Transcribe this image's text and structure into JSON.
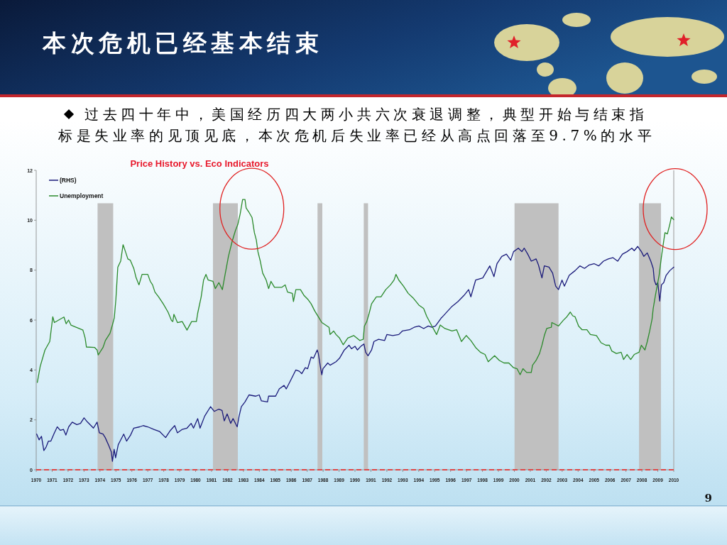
{
  "chart_data": {
    "type": "line",
    "title": "本次危机已经基本结束",
    "subtitle": "过去四十年中，美国经历四大两小共六次衰退调整，典型开始与结束指标是失业率的见顶见底，本次危机后失业率已经从高点回落至9.7%的水平",
    "annotations": [
      "Price History vs. Eco Indicators",
      "9"
    ],
    "xlim": [
      1970,
      2010
    ],
    "xticks": [
      1970,
      1971,
      1972,
      1973,
      1974,
      1975,
      1976,
      1977,
      1978,
      1979,
      1980,
      1981,
      1982,
      1983,
      1984,
      1985,
      1986,
      1987,
      1988,
      1989,
      1990,
      1991,
      1992,
      1993,
      1994,
      1995,
      1996,
      1997,
      1998,
      1999,
      2000,
      2001,
      2002,
      2003,
      2004,
      2005,
      2006,
      2007,
      2008,
      2009,
      2010
    ],
    "ylim": [
      0,
      12
    ],
    "yticks": [
      0,
      2,
      4,
      6,
      8,
      10,
      12
    ],
    "legend": "top left",
    "series": [
      {
        "name": "(RHS)",
        "color": "#1a1a7a",
        "x": [
          1970.03,
          1970.18,
          1970.33,
          1970.48,
          1970.62,
          1970.77,
          1970.92,
          1971.14,
          1971.32,
          1971.51,
          1971.71,
          1971.86,
          1972.04,
          1972.26,
          1972.55,
          1972.78,
          1973.0,
          1973.22,
          1973.44,
          1973.59,
          1973.82,
          1973.96,
          1974.19,
          1974.33,
          1974.56,
          1974.71,
          1974.78,
          1974.89,
          1974.98,
          1975.15,
          1975.49,
          1975.67,
          1975.92,
          1976.12,
          1976.49,
          1976.71,
          1977.0,
          1977.38,
          1977.75,
          1978.12,
          1978.42,
          1978.69,
          1978.86,
          1979.16,
          1979.46,
          1979.72,
          1979.87,
          1980.13,
          1980.28,
          1980.57,
          1980.94,
          1981.17,
          1981.46,
          1981.66,
          1981.8,
          1981.98,
          1982.2,
          1982.35,
          1982.61,
          1982.73,
          1982.87,
          1983.1,
          1983.35,
          1983.76,
          1983.99,
          1984.13,
          1984.51,
          1984.58,
          1985.02,
          1985.25,
          1985.55,
          1985.69,
          1985.99,
          1986.29,
          1986.51,
          1986.66,
          1986.88,
          1987.03,
          1987.25,
          1987.4,
          1987.63,
          1987.7,
          1987.85,
          1987.92,
          1987.99,
          1988.29,
          1988.44,
          1988.81,
          1989.03,
          1989.33,
          1989.63,
          1989.78,
          1990.0,
          1990.15,
          1990.37,
          1990.56,
          1990.67,
          1990.82,
          1991.04,
          1991.19,
          1991.48,
          1991.86,
          1992.0,
          1992.37,
          1992.75,
          1992.97,
          1993.42,
          1993.71,
          1994.01,
          1994.31,
          1994.6,
          1994.82,
          1995.05,
          1995.42,
          1995.49,
          1996.09,
          1996.46,
          1996.83,
          1997.13,
          1997.27,
          1997.57,
          1998.02,
          1998.46,
          1998.72,
          1998.91,
          1999.21,
          1999.5,
          1999.77,
          1999.95,
          2000.25,
          2000.47,
          2000.62,
          2000.84,
          2001.06,
          2001.36,
          2001.51,
          2001.73,
          2001.88,
          2002.17,
          2002.4,
          2002.59,
          2002.77,
          2002.99,
          2003.14,
          2003.44,
          2003.81,
          2004.11,
          2004.4,
          2004.7,
          2005.0,
          2005.29,
          2005.59,
          2005.89,
          2006.18,
          2006.48,
          2006.78,
          2007.07,
          2007.37,
          2007.52,
          2007.74,
          2007.97,
          2008.12,
          2008.34,
          2008.56,
          2008.71,
          2008.78,
          2008.89,
          2009.0,
          2009.12,
          2009.23,
          2009.37,
          2009.52,
          2009.75,
          2010.0
        ],
        "values": [
          1.43,
          1.2,
          1.34,
          0.77,
          0.91,
          1.15,
          1.15,
          1.48,
          1.72,
          1.58,
          1.62,
          1.39,
          1.72,
          1.91,
          1.81,
          1.86,
          2.08,
          1.91,
          1.77,
          1.67,
          1.91,
          1.48,
          1.43,
          1.29,
          0.96,
          0.72,
          0.34,
          0.82,
          0.48,
          1.01,
          1.43,
          1.15,
          1.39,
          1.67,
          1.72,
          1.77,
          1.72,
          1.62,
          1.53,
          1.29,
          1.58,
          1.77,
          1.48,
          1.62,
          1.67,
          1.86,
          1.67,
          2.05,
          1.67,
          2.15,
          2.53,
          2.34,
          2.43,
          2.38,
          1.96,
          2.24,
          1.86,
          2.05,
          1.72,
          2.15,
          2.53,
          2.72,
          3.0,
          2.95,
          3.0,
          2.76,
          2.72,
          2.95,
          2.95,
          3.24,
          3.38,
          3.24,
          3.62,
          4.0,
          3.95,
          3.85,
          4.09,
          4.05,
          4.52,
          4.47,
          4.8,
          4.66,
          4.05,
          3.81,
          4.05,
          4.28,
          4.19,
          4.33,
          4.47,
          4.8,
          4.99,
          4.85,
          4.95,
          4.8,
          4.95,
          5.04,
          4.71,
          4.57,
          4.8,
          5.14,
          5.23,
          5.18,
          5.42,
          5.38,
          5.42,
          5.56,
          5.61,
          5.71,
          5.76,
          5.66,
          5.76,
          5.71,
          5.76,
          6.09,
          6.13,
          6.55,
          6.74,
          6.98,
          7.22,
          6.93,
          7.6,
          7.69,
          8.17,
          7.74,
          8.26,
          8.55,
          8.64,
          8.4,
          8.74,
          8.88,
          8.74,
          8.88,
          8.64,
          8.36,
          8.45,
          8.21,
          7.69,
          8.17,
          8.12,
          7.88,
          7.36,
          7.22,
          7.6,
          7.36,
          7.79,
          7.98,
          8.17,
          8.07,
          8.21,
          8.26,
          8.17,
          8.36,
          8.45,
          8.5,
          8.36,
          8.64,
          8.74,
          8.88,
          8.78,
          8.95,
          8.74,
          8.55,
          8.69,
          8.36,
          8.07,
          7.6,
          7.41,
          7.5,
          6.76,
          7.41,
          7.5,
          7.79,
          7.98,
          8.12
        ]
      },
      {
        "name": "Unemployment",
        "color": "#2b8a2b",
        "x": [
          1970.07,
          1970.25,
          1970.55,
          1970.85,
          1971.04,
          1971.14,
          1971.74,
          1971.88,
          1972.03,
          1972.18,
          1972.93,
          1973.07,
          1973.15,
          1973.67,
          1973.82,
          1973.89,
          1974.19,
          1974.34,
          1974.63,
          1974.78,
          1974.9,
          1975.0,
          1975.12,
          1975.3,
          1975.45,
          1975.6,
          1975.75,
          1975.9,
          1976.12,
          1976.27,
          1976.45,
          1976.64,
          1977.0,
          1977.16,
          1977.3,
          1977.45,
          1977.68,
          1977.97,
          1978.27,
          1978.49,
          1978.57,
          1978.64,
          1978.86,
          1979.16,
          1979.46,
          1979.75,
          1980.05,
          1980.13,
          1980.35,
          1980.5,
          1980.65,
          1980.79,
          1981.09,
          1981.24,
          1981.46,
          1981.68,
          1981.84,
          1982.06,
          1982.28,
          1982.5,
          1982.65,
          1982.8,
          1982.95,
          1983.1,
          1983.17,
          1983.32,
          1983.54,
          1983.69,
          1983.81,
          1983.91,
          1984.06,
          1984.21,
          1984.43,
          1984.58,
          1984.73,
          1984.95,
          1985.4,
          1985.62,
          1985.77,
          1986.07,
          1986.14,
          1986.29,
          1986.58,
          1986.81,
          1987.03,
          1987.25,
          1987.48,
          1987.7,
          1987.92,
          1988.37,
          1988.44,
          1988.66,
          1988.81,
          1989.03,
          1989.26,
          1989.55,
          1989.92,
          1990.3,
          1990.52,
          1990.59,
          1990.74,
          1990.89,
          1991.04,
          1991.34,
          1991.63,
          1991.93,
          1992.23,
          1992.45,
          1992.57,
          1992.75,
          1993.04,
          1993.34,
          1993.64,
          1994.01,
          1994.31,
          1994.5,
          1994.75,
          1995.12,
          1995.35,
          1995.64,
          1996.09,
          1996.38,
          1996.68,
          1996.98,
          1997.27,
          1997.57,
          1997.87,
          1998.16,
          1998.36,
          1998.76,
          1999.06,
          1999.35,
          1999.65,
          1999.95,
          2000.17,
          2000.36,
          2000.54,
          2000.77,
          2001.06,
          2001.14,
          2001.36,
          2001.58,
          2001.73,
          2001.88,
          2002.03,
          2002.32,
          2002.35,
          2002.77,
          2003.07,
          2003.29,
          2003.51,
          2003.66,
          2003.81,
          2004.03,
          2004.25,
          2004.55,
          2004.77,
          2005.15,
          2005.44,
          2005.74,
          2005.96,
          2006.11,
          2006.4,
          2006.7,
          2006.85,
          2007.07,
          2007.3,
          2007.52,
          2007.82,
          2007.97,
          2008.19,
          2008.34,
          2008.49,
          2008.64,
          2008.71,
          2008.86,
          2009.08,
          2009.23,
          2009.38,
          2009.45,
          2009.6,
          2009.75,
          2009.85,
          2010.0
        ],
        "values": [
          3.5,
          4.14,
          4.8,
          5.14,
          6.13,
          5.9,
          6.12,
          5.85,
          6.0,
          5.8,
          5.6,
          5.28,
          4.92,
          4.9,
          4.8,
          4.6,
          4.9,
          5.18,
          5.47,
          5.8,
          6.09,
          6.84,
          8.12,
          8.36,
          9.02,
          8.74,
          8.45,
          8.4,
          8.07,
          7.69,
          7.41,
          7.83,
          7.83,
          7.55,
          7.41,
          7.12,
          6.93,
          6.65,
          6.32,
          5.98,
          5.94,
          6.23,
          5.9,
          5.94,
          5.6,
          5.94,
          5.94,
          6.27,
          6.93,
          7.6,
          7.83,
          7.6,
          7.55,
          7.26,
          7.5,
          7.22,
          7.79,
          8.55,
          9.12,
          9.59,
          9.83,
          10.26,
          10.83,
          10.83,
          10.49,
          10.35,
          10.11,
          9.5,
          9.21,
          8.74,
          8.36,
          7.88,
          7.6,
          7.26,
          7.55,
          7.31,
          7.31,
          7.41,
          7.12,
          7.07,
          6.74,
          7.22,
          7.22,
          6.98,
          6.84,
          6.65,
          6.36,
          6.13,
          5.9,
          5.71,
          5.42,
          5.56,
          5.42,
          5.28,
          5.01,
          5.28,
          5.38,
          5.18,
          5.23,
          5.76,
          5.94,
          6.27,
          6.65,
          6.93,
          6.93,
          7.22,
          7.41,
          7.6,
          7.83,
          7.6,
          7.36,
          7.07,
          6.89,
          6.6,
          6.46,
          6.15,
          5.85,
          5.42,
          5.8,
          5.66,
          5.56,
          5.61,
          5.14,
          5.38,
          5.18,
          4.9,
          4.71,
          4.62,
          4.33,
          4.57,
          4.38,
          4.28,
          4.28,
          4.09,
          4.05,
          3.81,
          4.05,
          3.9,
          3.9,
          4.19,
          4.38,
          4.66,
          4.99,
          5.38,
          5.66,
          5.71,
          5.9,
          5.76,
          5.99,
          6.13,
          6.32,
          6.17,
          6.13,
          5.76,
          5.61,
          5.61,
          5.42,
          5.38,
          5.09,
          4.99,
          4.99,
          4.76,
          4.66,
          4.71,
          4.42,
          4.62,
          4.42,
          4.62,
          4.71,
          4.99,
          4.8,
          5.14,
          5.56,
          6.04,
          6.46,
          7.03,
          7.79,
          8.55,
          9.21,
          9.5,
          9.45,
          9.83,
          10.13,
          10.02
        ]
      }
    ],
    "bands": [
      {
        "axis": "x",
        "from": 1973.85,
        "to": 1974.83,
        "color": "#c0c0c0"
      },
      {
        "axis": "x",
        "from": 1981.09,
        "to": 1982.65,
        "color": "#c0c0c0"
      },
      {
        "axis": "x",
        "from": 1987.65,
        "to": 1987.95,
        "color": "#c0c0c0"
      },
      {
        "axis": "x",
        "from": 1990.55,
        "to": 1990.82,
        "color": "#c0c0c0"
      },
      {
        "axis": "x",
        "from": 2000.01,
        "to": 2002.77,
        "color": "#c0c0c0"
      },
      {
        "axis": "x",
        "from": 2007.82,
        "to": 2009.2,
        "color": "#c0c0c0"
      }
    ],
    "ref_lines": [
      {
        "axis": "y",
        "value": 0,
        "color": "#e04848",
        "line_style": "dashed"
      }
    ]
  }
}
